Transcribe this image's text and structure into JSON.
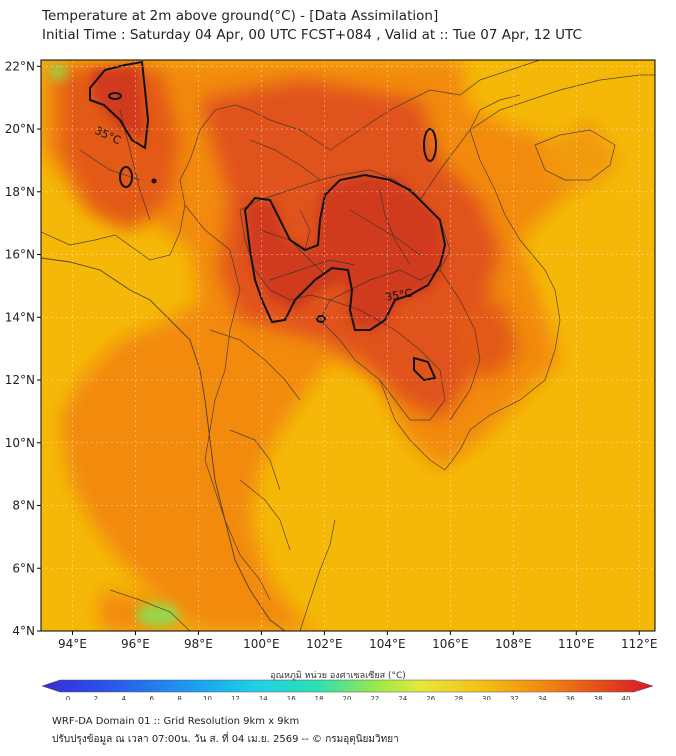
{
  "title": {
    "line1": "Temperature at 2m above ground(°C) - [Data Assimilation]",
    "line2": "Initial Time : Saturday 04 Apr, 00 UTC FCST+084 , Valid at :: Tue 07 Apr, 12 UTC"
  },
  "map": {
    "lon_min": 93,
    "lon_max": 112.5,
    "lat_min": 4,
    "lat_max": 22.2,
    "lon_ticks": [
      "94°E",
      "96°E",
      "98°E",
      "100°E",
      "102°E",
      "104°E",
      "106°E",
      "108°E",
      "110°E",
      "112°E"
    ],
    "lon_tick_values": [
      94,
      96,
      98,
      100,
      102,
      104,
      106,
      108,
      110,
      112
    ],
    "lat_ticks": [
      "22°N",
      "20°N",
      "18°N",
      "16°N",
      "14°N",
      "12°N",
      "10°N",
      "8°N",
      "6°N",
      "4°N"
    ],
    "lat_tick_values": [
      22,
      20,
      18,
      16,
      14,
      12,
      10,
      8,
      6,
      4
    ],
    "contour_labels": [
      "35°C",
      "35°C"
    ],
    "colors": {
      "background": "#f4b400",
      "warm": "#f28a0a",
      "hot": "#e0521a",
      "hottest": "#cf3a1e",
      "cool_patch": "#9ad44a",
      "border": "#333333"
    }
  },
  "colorbar": {
    "title": "อุณหภูมิ หน่วย องศาเซลเซียส (°C)",
    "min": 0,
    "max": 40,
    "tick_labels": [
      "0",
      "2",
      "4",
      "6",
      "8",
      "10",
      "12",
      "14",
      "16",
      "18",
      "20",
      "22",
      "24",
      "26",
      "28",
      "30",
      "32",
      "34",
      "36",
      "38",
      "40"
    ],
    "tick_values": [
      0,
      2,
      4,
      6,
      8,
      10,
      12,
      14,
      16,
      18,
      20,
      22,
      24,
      26,
      28,
      30,
      32,
      34,
      36,
      38,
      40
    ]
  },
  "footer": {
    "line1": "WRF-DA Domain 01 :: Grid Resolution 9km x 9km",
    "line2": "ปรับปรุงข้อมูล ณ เวลา 07:00น. วัน ส. ที่ 04 เม.ย. 2569 -- © กรมอุตุนิยมวิทยา"
  }
}
